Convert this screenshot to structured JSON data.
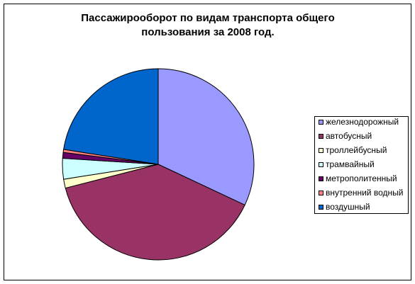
{
  "chart_data": {
    "type": "pie",
    "title": "Пассажирооборот по видам транспорта общего пользования за 2008 год.",
    "categories": [
      "железнодорожный",
      "автобусный",
      "троллейбусный",
      "трамвайный",
      "метрополитенный",
      "внутренний водный",
      "воздушный"
    ],
    "values": [
      32,
      39,
      1.5,
      3.5,
      1,
      0.5,
      22.5
    ],
    "colors": [
      "#9999ff",
      "#993366",
      "#ffffcc",
      "#ccffff",
      "#660066",
      "#ff8080",
      "#0066cc"
    ],
    "legend": "right"
  }
}
